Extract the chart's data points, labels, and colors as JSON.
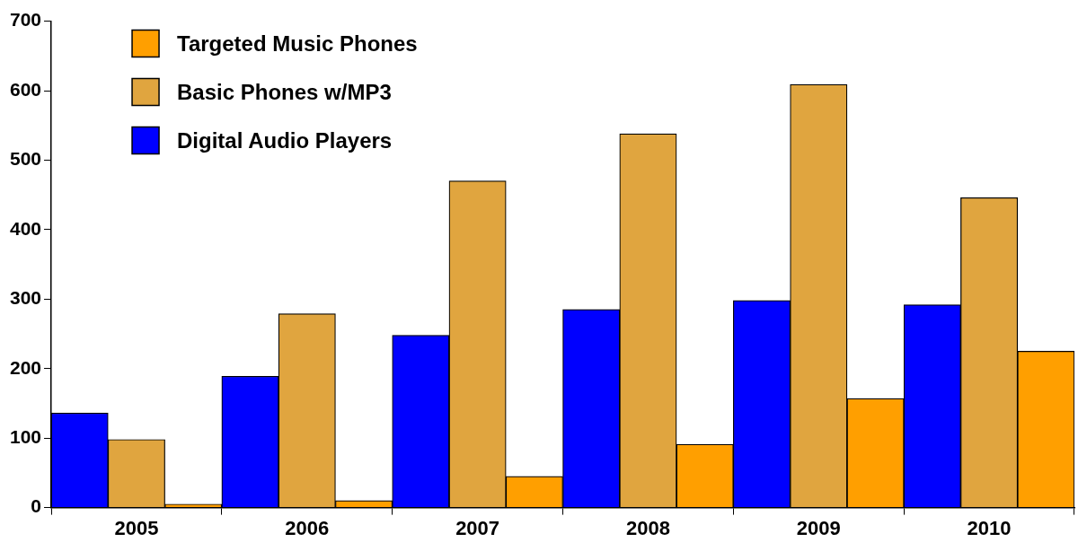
{
  "chart_data": {
    "type": "bar",
    "categories": [
      "2005",
      "2006",
      "2007",
      "2008",
      "2009",
      "2010"
    ],
    "series": [
      {
        "name": "Digital Audio Players",
        "color": "#0000ff",
        "values": [
          136,
          189,
          248,
          285,
          298,
          292
        ]
      },
      {
        "name": "Basic Phones w/MP3",
        "color": "#e0a53f",
        "values": [
          98,
          279,
          470,
          538,
          609,
          446
        ]
      },
      {
        "name": "Targeted Music Phones",
        "color": "#ff9f00",
        "values": [
          5,
          10,
          45,
          91,
          157,
          225
        ]
      }
    ],
    "ylim": [
      0,
      700
    ],
    "yticks": [
      0,
      100,
      200,
      300,
      400,
      500,
      600,
      700
    ],
    "grid": false,
    "legend": "top left"
  }
}
